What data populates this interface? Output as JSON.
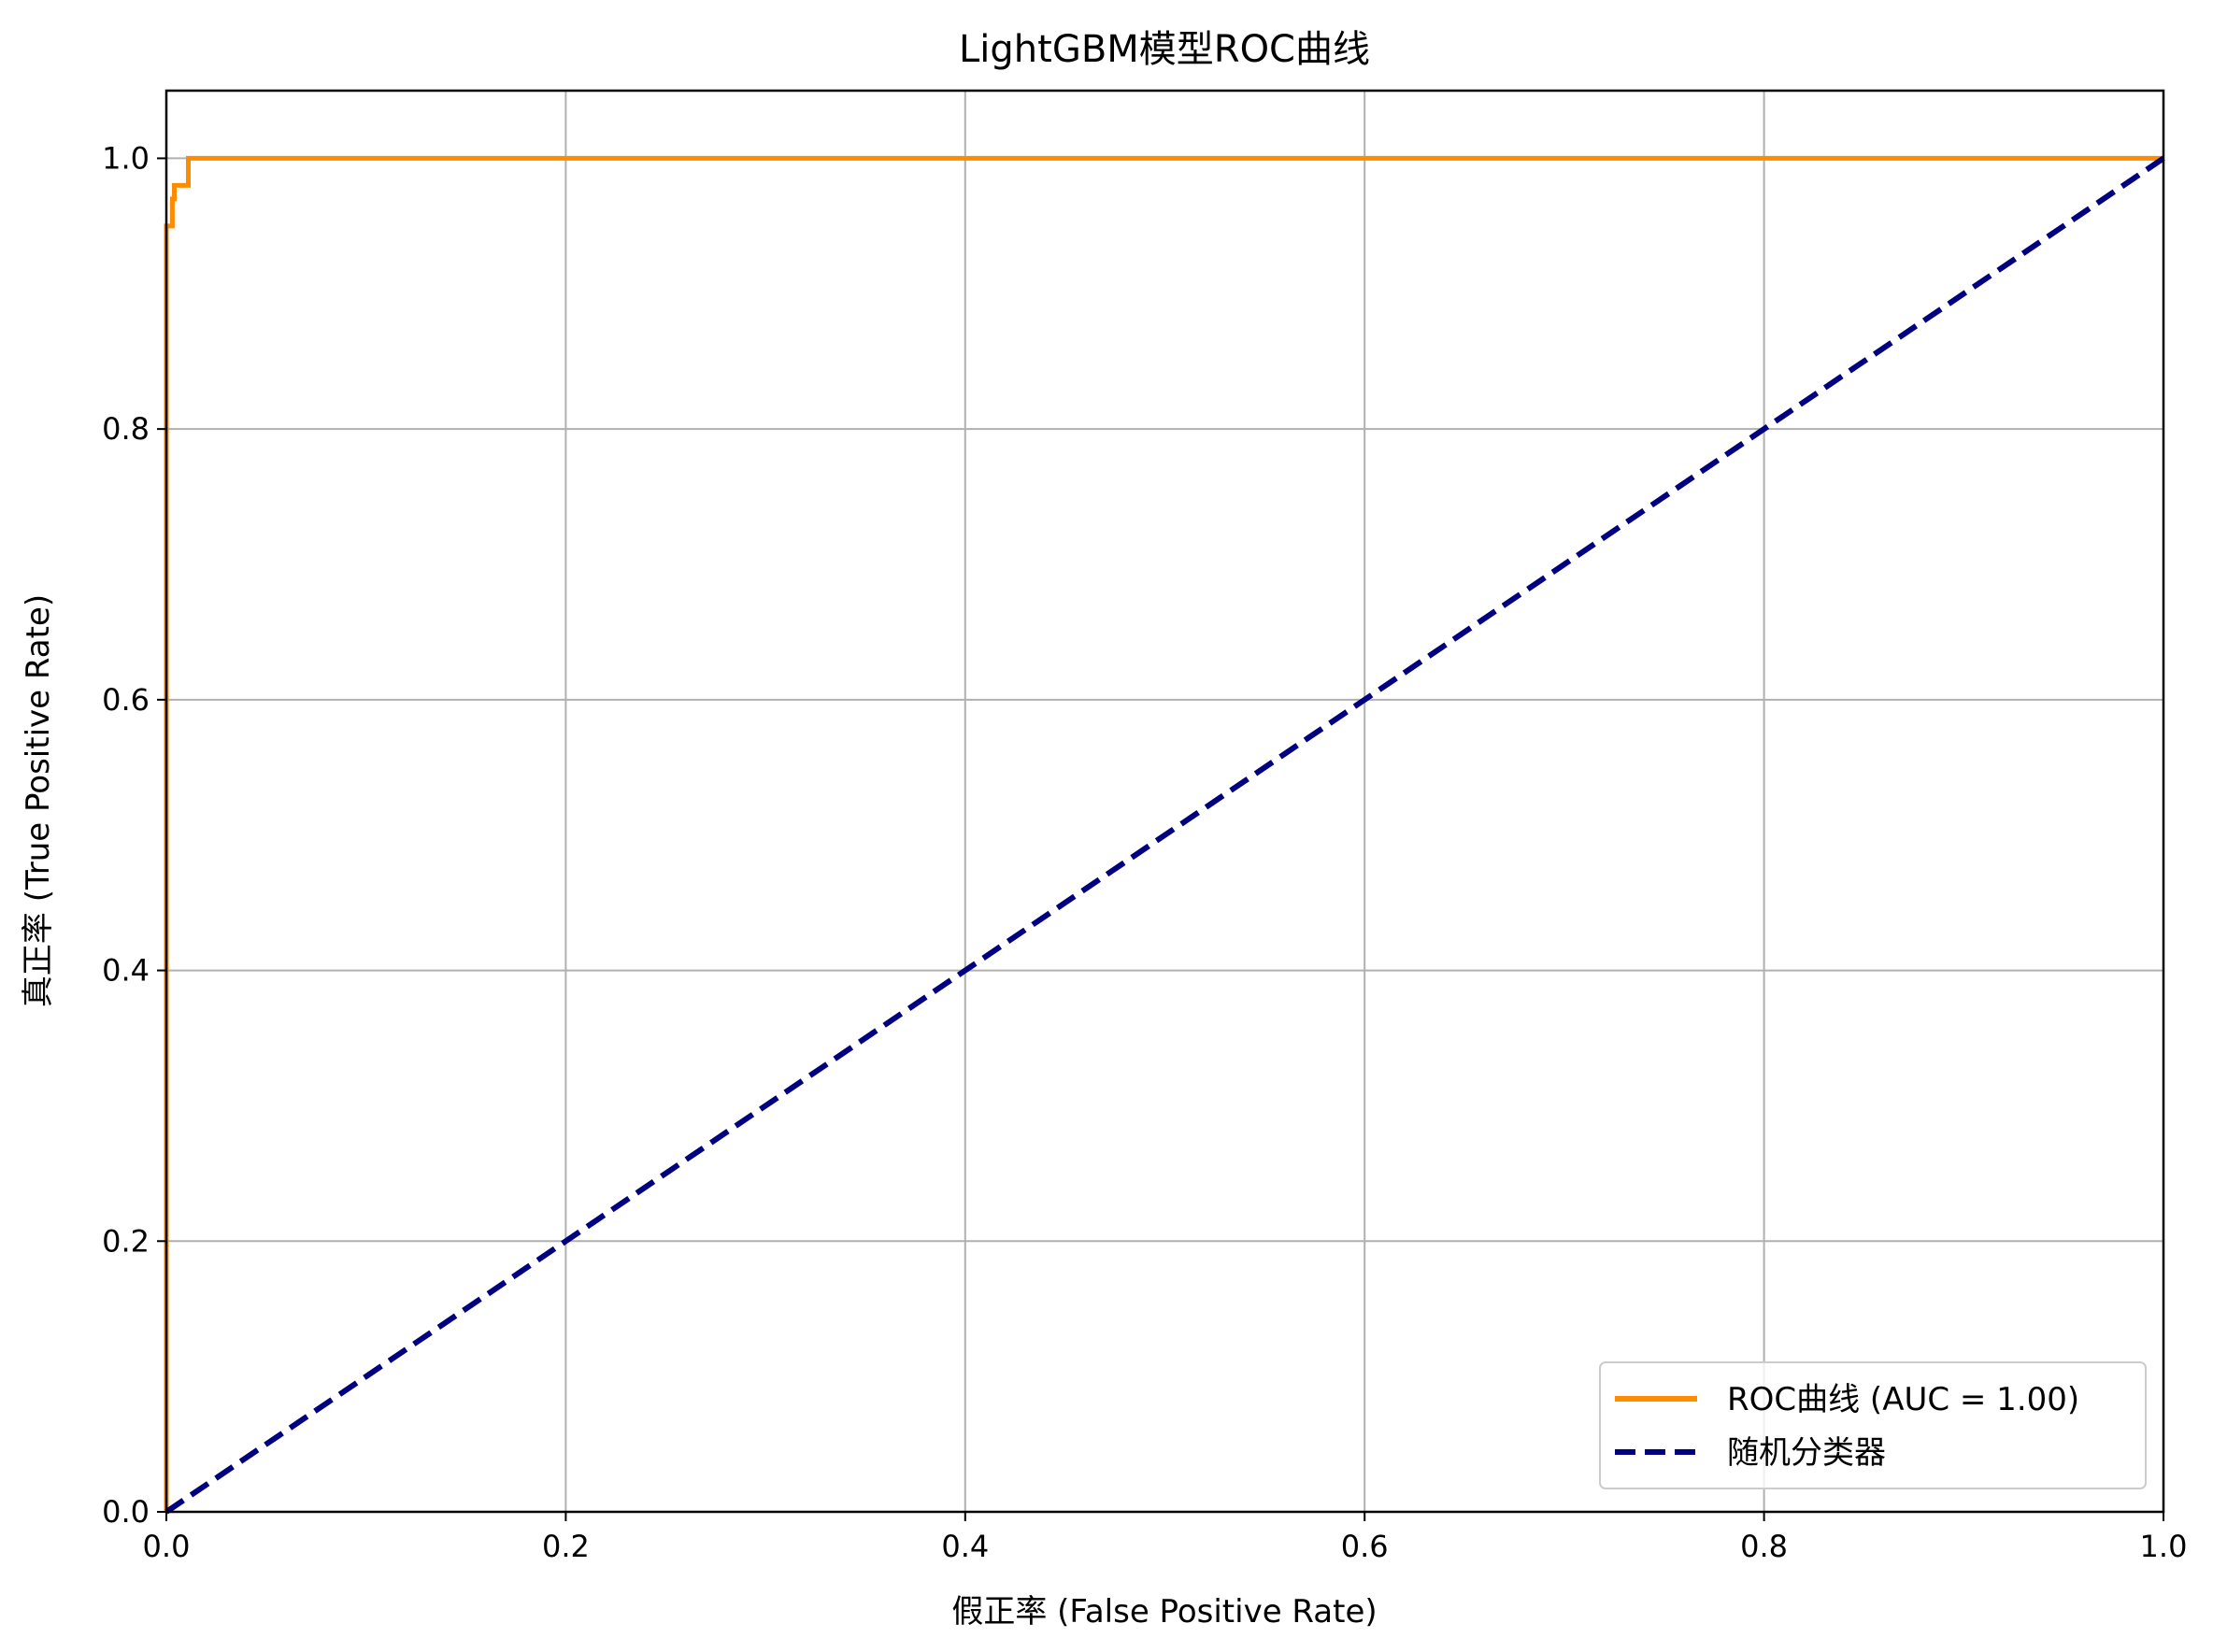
{
  "chart_data": {
    "type": "line",
    "title": "LightGBM模型ROC曲线",
    "xlabel": "假正率 (False Positive Rate)",
    "ylabel": "真正率 (True Positive Rate)",
    "xlim": [
      0.0,
      1.0
    ],
    "ylim": [
      0.0,
      1.05
    ],
    "xticks": [
      0.0,
      0.2,
      0.4,
      0.6,
      0.8,
      1.0
    ],
    "yticks": [
      0.0,
      0.2,
      0.4,
      0.6,
      0.8,
      1.0
    ],
    "xtick_labels": [
      "0.0",
      "0.2",
      "0.4",
      "0.6",
      "0.8",
      "1.0"
    ],
    "ytick_labels": [
      "0.0",
      "0.2",
      "0.4",
      "0.6",
      "0.8",
      "1.0"
    ],
    "grid": true,
    "legend_position": "lower-right",
    "series": [
      {
        "name": "ROC曲线 (AUC = 1.00)",
        "color": "#ff8c00",
        "style": "solid",
        "x": [
          0.0,
          0.0,
          0.0,
          0.0,
          0.003,
          0.003,
          0.003,
          0.004,
          0.004,
          0.011,
          0.011,
          1.0
        ],
        "y": [
          0.0,
          0.89,
          0.95,
          0.95,
          0.95,
          0.97,
          0.97,
          0.97,
          0.98,
          0.98,
          1.0,
          1.0
        ]
      },
      {
        "name": "随机分类器",
        "color": "#000080",
        "style": "dashed",
        "x": [
          0.0,
          1.0
        ],
        "y": [
          0.0,
          1.0
        ]
      }
    ]
  }
}
